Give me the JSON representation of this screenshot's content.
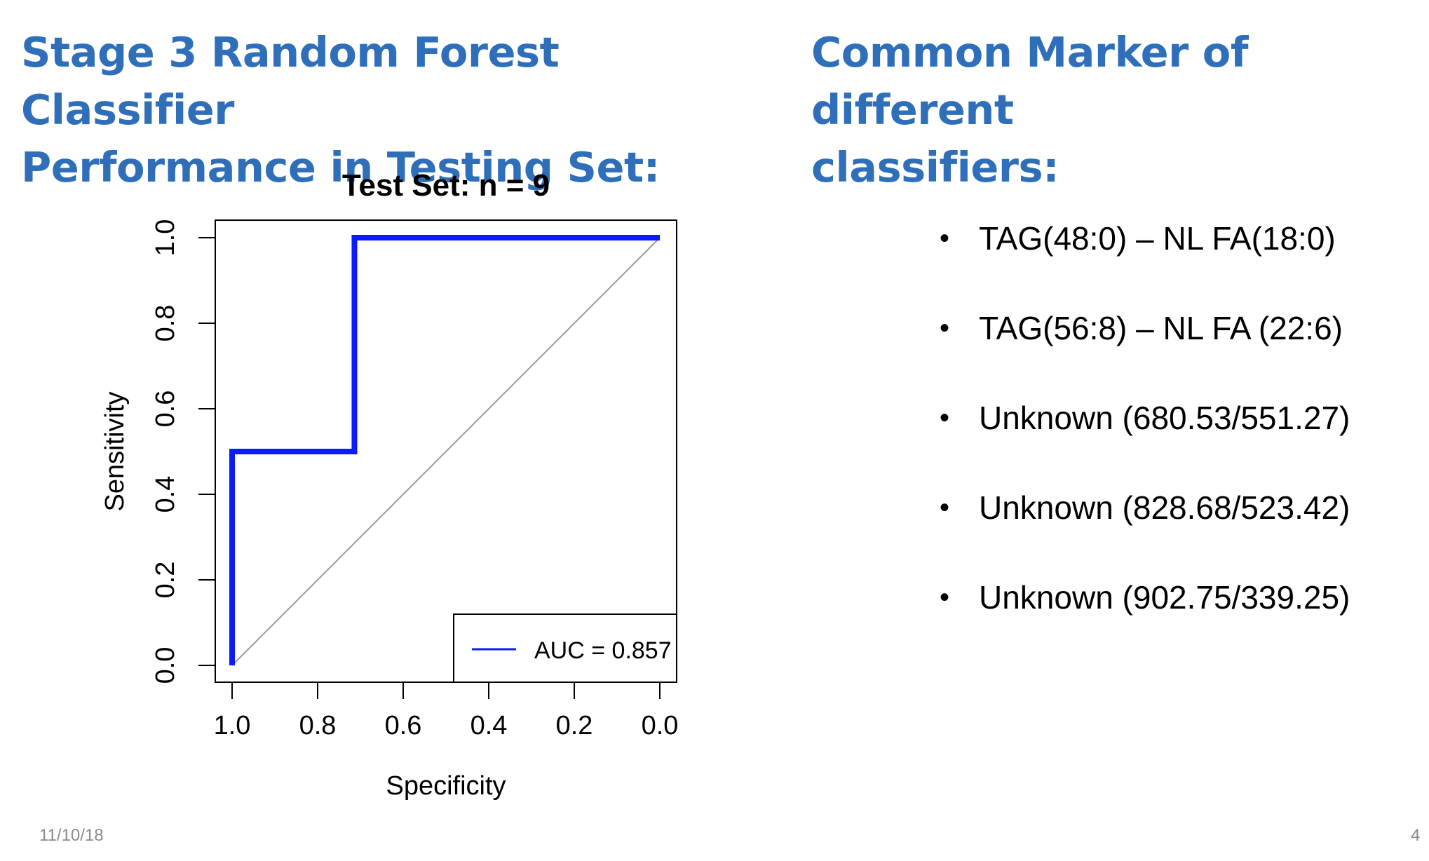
{
  "slide": {
    "left_heading_line1": "Stage 3 Random Forest Classifier",
    "left_heading_line2": "Performance in Testing Set:",
    "right_heading_line1": "Common Marker of different",
    "right_heading_line2": "classifiers:",
    "bullet_glyph": "•",
    "markers": [
      "TAG(48:0) – NL FA(18:0)",
      "TAG(56:8) – NL FA (22:6)",
      "Unknown (680.53/551.27)",
      "Unknown (828.68/523.42)",
      "Unknown (902.75/339.25)"
    ],
    "footer_date": "11/10/18",
    "page_number": "4"
  },
  "chart_data": {
    "type": "line",
    "title": "Test Set: n = 9",
    "xlabel": "Specificity",
    "ylabel": "Sensitivity",
    "xlim": [
      1.0,
      0.0
    ],
    "ylim": [
      0.0,
      1.0
    ],
    "x_reversed": true,
    "x_ticks": [
      "1.0",
      "0.8",
      "0.6",
      "0.4",
      "0.2",
      "0.0"
    ],
    "y_ticks": [
      "0.0",
      "0.2",
      "0.4",
      "0.6",
      "0.8",
      "1.0"
    ],
    "grid": false,
    "legend_position": "bottom-right",
    "series": [
      {
        "name": "AUC = 0.857",
        "color": "#0a1cff",
        "specificity": [
          1.0,
          1.0,
          0.714,
          0.714,
          0.0
        ],
        "sensitivity": [
          0.0,
          0.5,
          0.5,
          1.0,
          1.0
        ]
      }
    ],
    "reference_line": {
      "color": "#9a9a9a",
      "specificity": [
        1.0,
        0.0
      ],
      "sensitivity": [
        0.0,
        1.0
      ]
    }
  }
}
